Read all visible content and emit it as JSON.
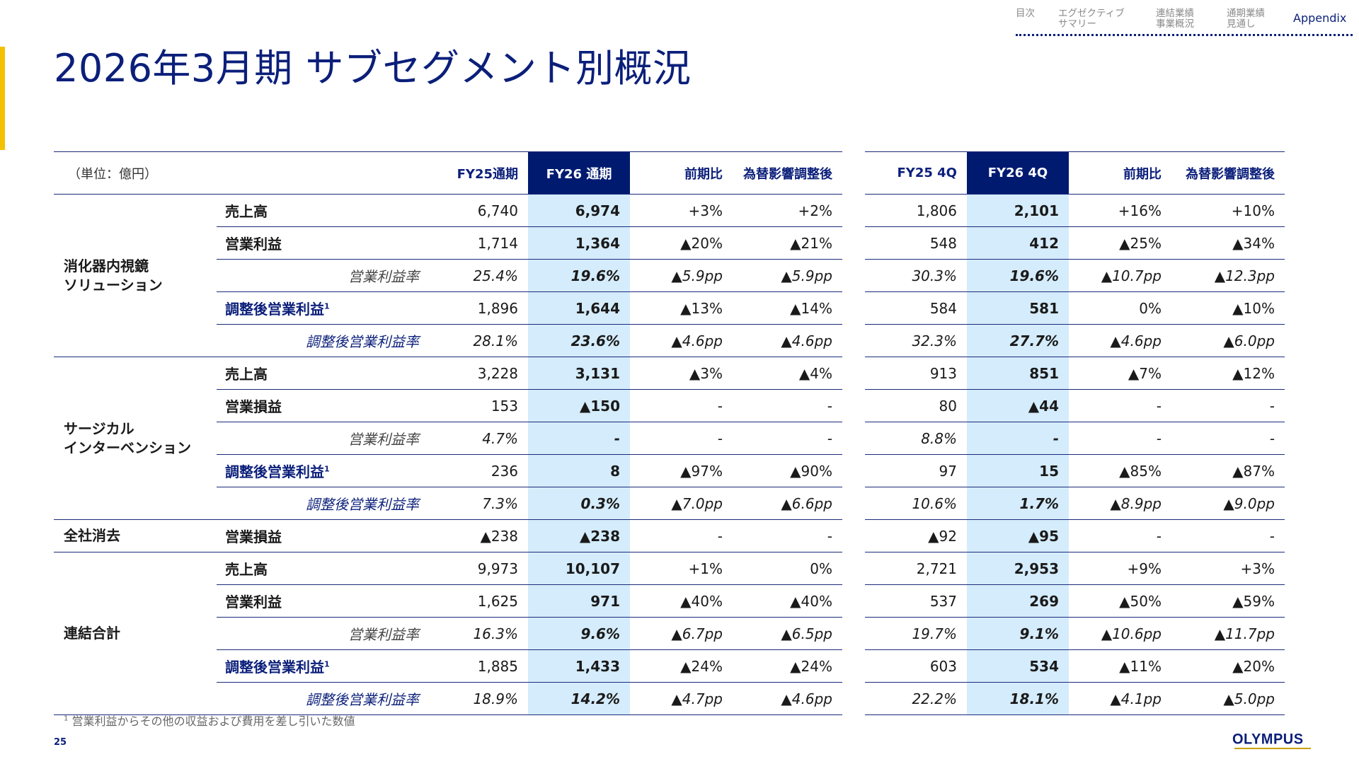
{
  "title": "2026年3月期 サブセグメント別概況",
  "nav": [
    "目次",
    "エグゼクティブ\nサマリー",
    "連結業績\n事業概況",
    "通期業績\n見通し",
    "Appendix"
  ],
  "unit_label": "（単位：億円）",
  "left_headers": [
    "FY25通期",
    "FY26 通期",
    "前期比",
    "為替影響調整後"
  ],
  "right_headers": [
    "FY25 4Q",
    "FY26 4Q",
    "前期比",
    "為替影響調整後"
  ],
  "segments": {
    "endoscopy": "消化器内視鏡\nソリューション",
    "surgical": "サージカル\nインターベンション",
    "elimination": "全社消去",
    "consolidated": "連結合計"
  },
  "labels": {
    "sales": "売上高",
    "op_profit": "営業利益",
    "op_loss": "営業損益",
    "op_margin": "営業利益率",
    "adj_op_profit": "調整後営業利益",
    "adj_op_margin": "調整後営業利益率",
    "footnote_mark": "1"
  },
  "rows": [
    {
      "l": [
        "6,740",
        "6,974",
        "+3%",
        "+2%"
      ],
      "r": [
        "1,806",
        "2,101",
        "+16%",
        "+10%"
      ]
    },
    {
      "l": [
        "1,714",
        "1,364",
        "▲20%",
        "▲21%"
      ],
      "r": [
        "548",
        "412",
        "▲25%",
        "▲34%"
      ]
    },
    {
      "l": [
        "25.4%",
        "19.6%",
        "▲5.9pp",
        "▲5.9pp"
      ],
      "r": [
        "30.3%",
        "19.6%",
        "▲10.7pp",
        "▲12.3pp"
      ]
    },
    {
      "l": [
        "1,896",
        "1,644",
        "▲13%",
        "▲14%"
      ],
      "r": [
        "584",
        "581",
        "0%",
        "▲10%"
      ]
    },
    {
      "l": [
        "28.1%",
        "23.6%",
        "▲4.6pp",
        "▲4.6pp"
      ],
      "r": [
        "32.3%",
        "27.7%",
        "▲4.6pp",
        "▲6.0pp"
      ]
    },
    {
      "l": [
        "3,228",
        "3,131",
        "▲3%",
        "▲4%"
      ],
      "r": [
        "913",
        "851",
        "▲7%",
        "▲12%"
      ]
    },
    {
      "l": [
        "153",
        "▲150",
        "-",
        "-"
      ],
      "r": [
        "80",
        "▲44",
        "-",
        "-"
      ]
    },
    {
      "l": [
        "4.7%",
        "-",
        "-",
        "-"
      ],
      "r": [
        "8.8%",
        "-",
        "-",
        "-"
      ]
    },
    {
      "l": [
        "236",
        "8",
        "▲97%",
        "▲90%"
      ],
      "r": [
        "97",
        "15",
        "▲85%",
        "▲87%"
      ]
    },
    {
      "l": [
        "7.3%",
        "0.3%",
        "▲7.0pp",
        "▲6.6pp"
      ],
      "r": [
        "10.6%",
        "1.7%",
        "▲8.9pp",
        "▲9.0pp"
      ]
    },
    {
      "l": [
        "▲238",
        "▲238",
        "-",
        "-"
      ],
      "r": [
        "▲92",
        "▲95",
        "-",
        "-"
      ]
    },
    {
      "l": [
        "9,973",
        "10,107",
        "+1%",
        "0%"
      ],
      "r": [
        "2,721",
        "2,953",
        "+9%",
        "+3%"
      ]
    },
    {
      "l": [
        "1,625",
        "971",
        "▲40%",
        "▲40%"
      ],
      "r": [
        "537",
        "269",
        "▲50%",
        "▲59%"
      ]
    },
    {
      "l": [
        "16.3%",
        "9.6%",
        "▲6.7pp",
        "▲6.5pp"
      ],
      "r": [
        "19.7%",
        "9.1%",
        "▲10.6pp",
        "▲11.7pp"
      ]
    },
    {
      "l": [
        "1,885",
        "1,433",
        "▲24%",
        "▲24%"
      ],
      "r": [
        "603",
        "534",
        "▲11%",
        "▲20%"
      ]
    },
    {
      "l": [
        "18.9%",
        "14.2%",
        "▲4.7pp",
        "▲4.6pp"
      ],
      "r": [
        "22.2%",
        "18.1%",
        "▲4.1pp",
        "▲5.0pp"
      ]
    }
  ],
  "footnote": "営業利益からその他の収益および費用を差し引いた数値",
  "page_number": "25",
  "logo_text": "OLYMPUS"
}
